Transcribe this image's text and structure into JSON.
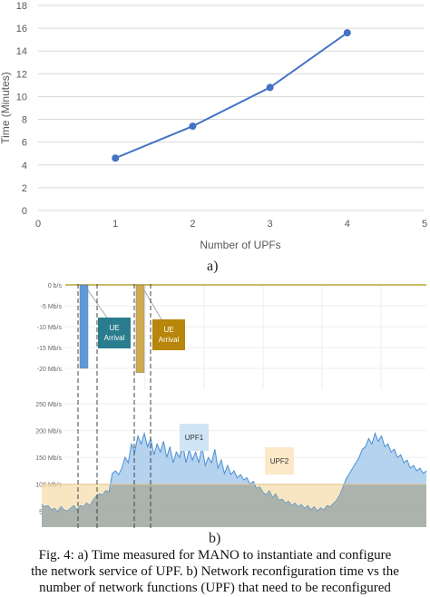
{
  "chart_data": [
    {
      "type": "line",
      "title": "",
      "xlabel": "Number of UPFs",
      "ylabel": "Time (Minutes)",
      "xlim": [
        0,
        5
      ],
      "ylim": [
        0,
        18
      ],
      "x_ticks": [
        "0",
        "1",
        "2",
        "3",
        "4",
        "5"
      ],
      "y_ticks": [
        "0",
        "2",
        "4",
        "6",
        "8",
        "10",
        "12",
        "14",
        "16",
        "18"
      ],
      "grid": true,
      "series": [
        {
          "x": [
            1,
            2,
            3,
            4
          ],
          "values": [
            4.6,
            7.4,
            10.8,
            15.6
          ],
          "color": "#4472C4"
        }
      ]
    },
    {
      "type": "area",
      "title": "",
      "top_panel": {
        "y_ticks": [
          "0 b/s",
          "-5 Mb/s",
          "-10 Mb/s",
          "-15 Mb/s",
          "-20 Mb/s"
        ],
        "ylim": [
          -25,
          0
        ],
        "bars": [
          {
            "name": "UE Arrival",
            "value": -20,
            "color": "#4a8fd6"
          },
          {
            "name": "UE Arrival",
            "value": -21,
            "color": "#c9a23a"
          }
        ],
        "annotations": [
          {
            "text": "UE Arrival",
            "color": "#2a7d8c"
          },
          {
            "text": "UE Arrival",
            "color": "#b8860b"
          }
        ]
      },
      "bottom_panel": {
        "y_ticks": [
          "250 Mb/s",
          "200 Mb/s",
          "150 Mb/s",
          "100 Mb/s",
          "50 Mb/s"
        ],
        "ylim": [
          20,
          250
        ],
        "series": [
          {
            "name": "UPF1",
            "color": "#4a8fd6",
            "values": [
              62,
              58,
              60,
              52,
              55,
              48,
              58,
              52,
              50,
              55,
              60,
              52,
              60,
              58,
              65,
              60,
              70,
              78,
              82,
              80,
              88,
              85,
              120,
              125,
              118,
              130,
              150,
              140,
              175,
              160,
              190,
              175,
              195,
              170,
              185,
              155,
              175,
              160,
              180,
              150,
              170,
              140,
              160,
              150,
              175,
              140,
              165,
              145,
              160,
              140,
              170,
              135,
              150,
              140,
              165,
              130,
              145,
              120,
              135,
              118,
              125,
              112,
              118,
              108,
              112,
              100,
              105,
              92,
              95,
              85,
              80,
              88,
              75,
              82,
              70,
              72,
              65,
              68,
              60,
              65,
              58,
              62,
              55,
              60,
              52,
              58,
              50,
              56,
              52,
              60,
              58,
              64,
              70,
              80,
              95,
              110,
              120,
              130,
              140,
              150,
              165,
              170,
              185,
              175,
              195,
              180,
              190,
              170,
              175,
              160,
              165,
              150,
              155,
              140,
              145,
              130,
              135,
              125,
              130,
              120,
              125
            ]
          },
          {
            "name": "UPF2",
            "color": "#f5dba8",
            "values": [
              100,
              100,
              100,
              100,
              100,
              100,
              100,
              100,
              100,
              100,
              100,
              100,
              100,
              100,
              100,
              100,
              100,
              100,
              100,
              100,
              100,
              100,
              100,
              100,
              100,
              100,
              100,
              100,
              100,
              100,
              100,
              100,
              100,
              100,
              100,
              100,
              100,
              100,
              100,
              100,
              100,
              100,
              100,
              100,
              100,
              100,
              100,
              100,
              100,
              100,
              100,
              100,
              100,
              100,
              100,
              100,
              100,
              100,
              100,
              100,
              100,
              100,
              100,
              100,
              100,
              100,
              100,
              100,
              100,
              100,
              100,
              100,
              100,
              100,
              100,
              100,
              100,
              100,
              100,
              100,
              100,
              100,
              100,
              100,
              100,
              100,
              100,
              100,
              100,
              100,
              100,
              100,
              100,
              100,
              100,
              100,
              100,
              100,
              100,
              100,
              100,
              100,
              100,
              100,
              100,
              100,
              100,
              100,
              100,
              100,
              100,
              100,
              100,
              100,
              100,
              100,
              100,
              100,
              100,
              100,
              100
            ]
          }
        ],
        "labels": [
          {
            "text": "UPF1",
            "color": "#cfe5f5"
          },
          {
            "text": "UPF2",
            "color": "#fbe9c8"
          }
        ]
      }
    }
  ],
  "labels": {
    "sub_a": "a)",
    "sub_b": "b)"
  },
  "caption": {
    "line1": "Fig. 4: a) Time measured for MANO to instantiate and configure",
    "line2": "the network service of UPF. b) Network reconfiguration time vs the",
    "line3": "number of network functions (UPF) that need to be reconfigured"
  }
}
